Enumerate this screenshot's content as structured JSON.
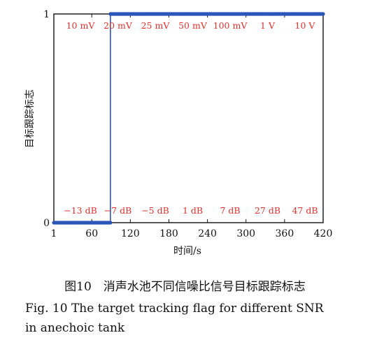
{
  "chart_data": {
    "type": "line",
    "xlabel": "时间/s",
    "ylabel": "目标跟踪标志",
    "xlim": [
      1,
      420
    ],
    "ylim": [
      0,
      1
    ],
    "x_ticks": [
      "1",
      "60",
      "120",
      "180",
      "240",
      "300",
      "360",
      "420"
    ],
    "y_ticks": [
      "0",
      "1"
    ],
    "grid": false,
    "series": [
      {
        "color": "#2a56b8",
        "x": [
          1,
          89,
          89,
          420
        ],
        "y": [
          0,
          0,
          1,
          1
        ]
      }
    ],
    "top_annotations": [
      "10 mV",
      "20 mV",
      "25 mV",
      "50 mV",
      "100 mV",
      "1 V",
      "10 V"
    ],
    "bottom_annotations": [
      "−13 dB",
      "−7 dB",
      "−5 dB",
      "1 dB",
      "7 dB",
      "27 dB",
      "47 dB"
    ],
    "annotation_color": "#e0312b"
  },
  "caption": {
    "cn": "图10　消声水池不同信噪比信号目标跟踪标志",
    "en_line1": "Fig. 10  The target tracking flag for different SNR",
    "en_line2": "in anechoic tank"
  }
}
